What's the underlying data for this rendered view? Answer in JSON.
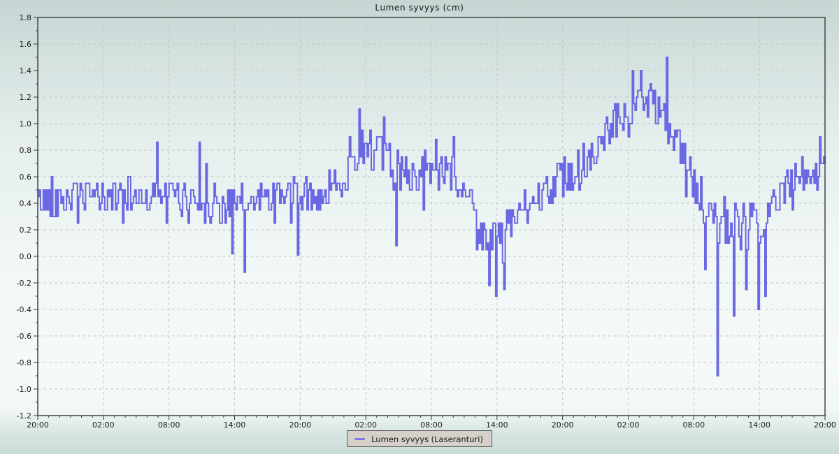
{
  "page": {
    "title": "Lumen syvyys (cm)"
  },
  "legend": {
    "entries": [
      {
        "label": "Lumen syvyys (Laseranturi)",
        "marker_color": "#7b79e2"
      }
    ],
    "position": "bottom-center",
    "background": "#d5d1c9",
    "border_color": "#5f5f5f"
  },
  "colors": {
    "line": "#6a68e2",
    "grid": "#c3c7c6",
    "frame": "#4e4e4e",
    "tick": "#333333",
    "label_text": "#1b1b1b",
    "background_top": "#c5d6d3",
    "background_middle": "#f3f9f8",
    "background_bottom": "#cbdcd8"
  },
  "chart_data": {
    "type": "line",
    "title": "Lumen syvyys (cm)",
    "xlabel": "",
    "ylabel": "",
    "grid": {
      "horizontal": true,
      "vertical": true,
      "style": "dashed",
      "color": "#c3c7c6"
    },
    "legend_position": "bottom-center",
    "series": [
      {
        "name": "Lumen syvyys (Laseranturi)",
        "color": "#6a68e2",
        "unit": "cm"
      }
    ],
    "x_axis": {
      "unit": "time",
      "range_hours": [
        0,
        72
      ],
      "major_tick_interval_hours": 6,
      "minor_tick_interval_hours": 1,
      "tick_labels": [
        "20:00",
        "02:00",
        "08:00",
        "14:00",
        "20:00",
        "02:00",
        "08:00",
        "14:00",
        "20:00",
        "02:00",
        "08:00",
        "14:00",
        "20:00"
      ]
    },
    "y_axis": {
      "min": -1.2,
      "max": 1.8,
      "major_step": 0.2,
      "minor_step": 0.1,
      "tick_labels": [
        "1.8",
        "1.6",
        "1.4",
        "1.2",
        "1.0",
        "0.8",
        "0.6",
        "0.4",
        "0.2",
        "0.0",
        "-0.2",
        "-0.4",
        "-0.6",
        "-0.8",
        "-1.0",
        "-1.2"
      ]
    },
    "baseline_hours": [
      0,
      1,
      2,
      3,
      4,
      5,
      6,
      7,
      8,
      9,
      10,
      11,
      12,
      13,
      14,
      15,
      16,
      17,
      18,
      19,
      20,
      21,
      22,
      23,
      24,
      25,
      26,
      27,
      28,
      29,
      30,
      31,
      32,
      33,
      34,
      35,
      36,
      37,
      38,
      39,
      40,
      41,
      42,
      43,
      44,
      45,
      46,
      47,
      48,
      49,
      50,
      51,
      52,
      53,
      54,
      55,
      56,
      57,
      58,
      59,
      60,
      61,
      62,
      63,
      64,
      65,
      66,
      67,
      68,
      69,
      70,
      71,
      72
    ],
    "baseline_mean_cm": [
      0.42,
      0.43,
      0.43,
      0.44,
      0.45,
      0.44,
      0.45,
      0.45,
      0.46,
      0.45,
      0.46,
      0.45,
      0.46,
      0.45,
      0.43,
      0.41,
      0.39,
      0.4,
      0.38,
      0.4,
      0.43,
      0.45,
      0.45,
      0.46,
      0.46,
      0.46,
      0.47,
      0.52,
      0.62,
      0.78,
      0.86,
      0.78,
      0.7,
      0.63,
      0.62,
      0.61,
      0.62,
      0.61,
      0.59,
      0.5,
      0.3,
      0.13,
      0.12,
      0.22,
      0.32,
      0.4,
      0.46,
      0.52,
      0.62,
      0.65,
      0.72,
      0.82,
      0.95,
      1.02,
      1.12,
      1.16,
      1.15,
      1.12,
      0.88,
      0.78,
      0.52,
      0.35,
      0.28,
      0.26,
      0.22,
      0.2,
      0.22,
      0.38,
      0.46,
      0.58,
      0.63,
      0.64,
      0.66
    ],
    "noise_half_range_cm": [
      0.13,
      0.13,
      0.13,
      0.13,
      0.13,
      0.13,
      0.13,
      0.13,
      0.13,
      0.13,
      0.13,
      0.13,
      0.13,
      0.13,
      0.13,
      0.15,
      0.15,
      0.15,
      0.15,
      0.15,
      0.13,
      0.13,
      0.13,
      0.13,
      0.13,
      0.13,
      0.13,
      0.13,
      0.16,
      0.16,
      0.16,
      0.16,
      0.16,
      0.16,
      0.15,
      0.15,
      0.15,
      0.15,
      0.15,
      0.15,
      0.15,
      0.14,
      0.14,
      0.14,
      0.13,
      0.13,
      0.13,
      0.13,
      0.15,
      0.15,
      0.15,
      0.15,
      0.15,
      0.15,
      0.15,
      0.15,
      0.15,
      0.15,
      0.14,
      0.14,
      0.18,
      0.18,
      0.18,
      0.18,
      0.18,
      0.18,
      0.18,
      0.14,
      0.14,
      0.14,
      0.13,
      0.13,
      0.13
    ],
    "spikes": [
      [
        10.9,
        0.86
      ],
      [
        14.7,
        0.86
      ],
      [
        17.7,
        0.02
      ],
      [
        18.9,
        -0.12
      ],
      [
        23.7,
        0.01
      ],
      [
        29.4,
        1.11
      ],
      [
        32.8,
        0.08
      ],
      [
        36.4,
        0.88
      ],
      [
        41.3,
        -0.22
      ],
      [
        41.9,
        -0.3
      ],
      [
        42.6,
        -0.25
      ],
      [
        54.4,
        1.4
      ],
      [
        55.1,
        1.4
      ],
      [
        57.5,
        1.5
      ],
      [
        59.3,
        0.45
      ],
      [
        61.0,
        -0.1
      ],
      [
        62.1,
        -0.9
      ],
      [
        63.6,
        -0.45
      ],
      [
        64.8,
        -0.25
      ],
      [
        65.9,
        -0.4
      ],
      [
        66.5,
        -0.3
      ],
      [
        71.5,
        0.9
      ]
    ],
    "render": {
      "samples_per_hour": 8,
      "quantize_cm": 0.05,
      "seed": 42,
      "line_width": 2
    }
  }
}
